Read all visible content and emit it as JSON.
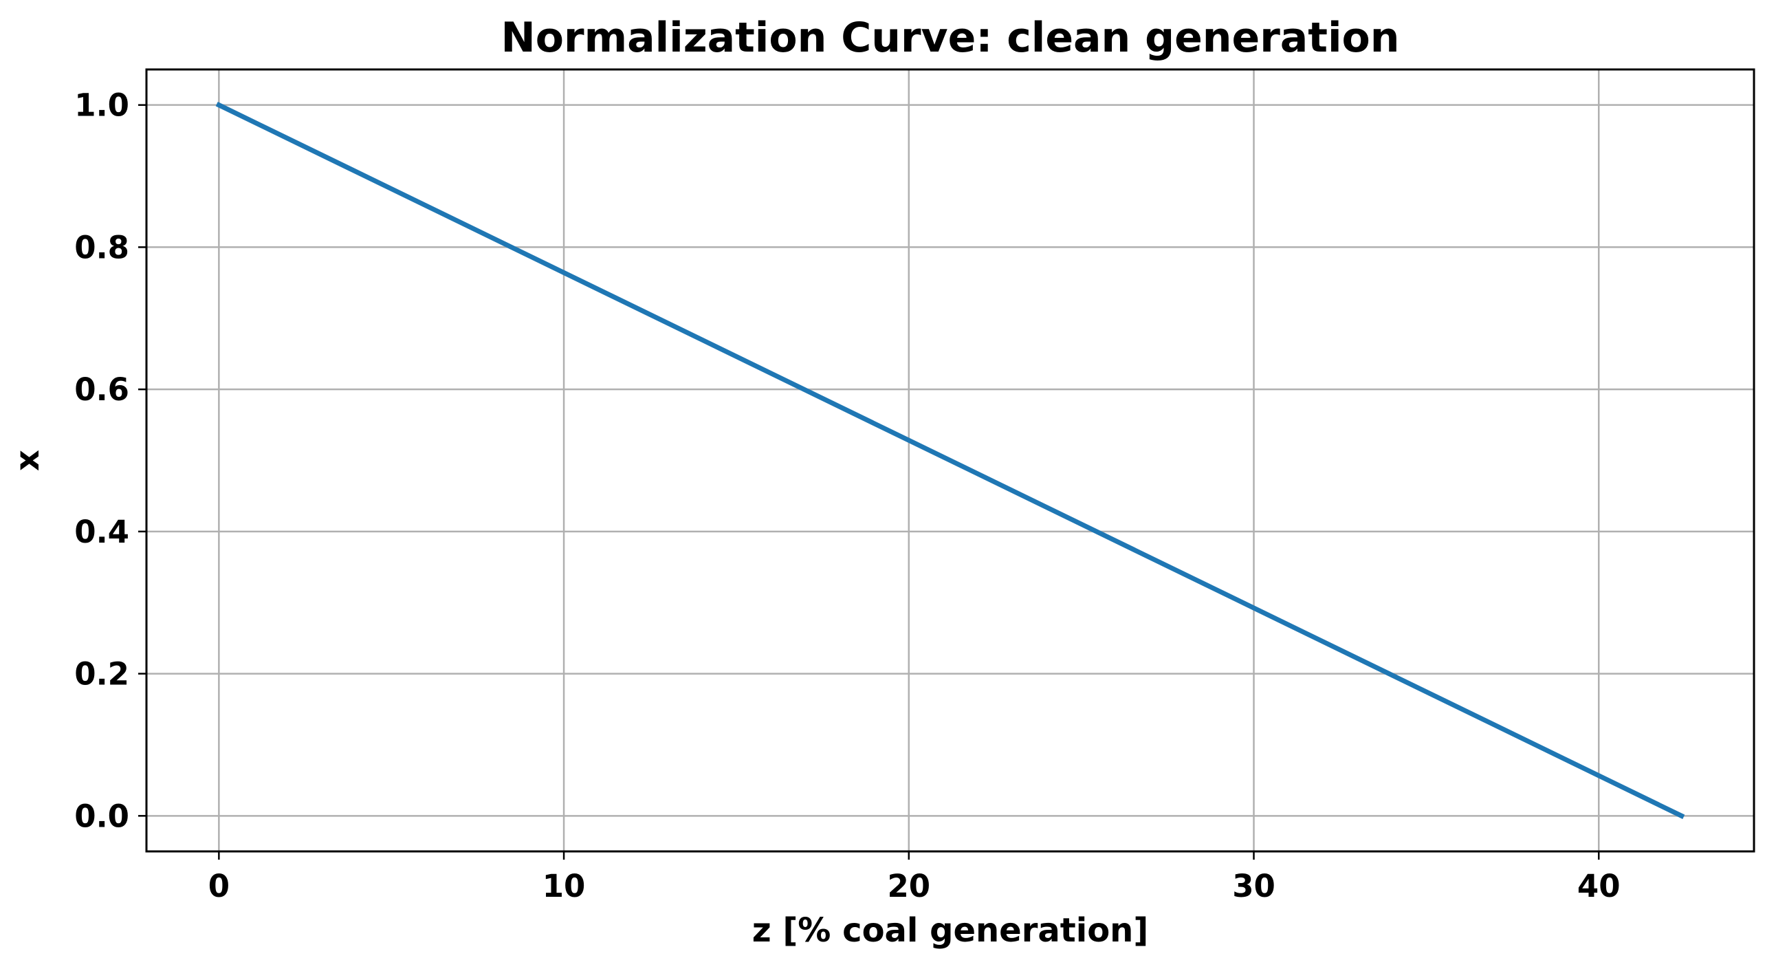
{
  "chart_data": {
    "type": "line",
    "title": "Normalization Curve: clean generation",
    "xlabel": "z [% coal generation]",
    "ylabel": "x",
    "xlim": [
      -2.1,
      44.5
    ],
    "ylim": [
      -0.05,
      1.05
    ],
    "xticks": [
      0,
      10,
      20,
      30,
      40
    ],
    "xtick_labels": [
      "0",
      "10",
      "20",
      "30",
      "40"
    ],
    "yticks": [
      0.0,
      0.2,
      0.4,
      0.6,
      0.8,
      1.0
    ],
    "ytick_labels": [
      "0.0",
      "0.2",
      "0.4",
      "0.6",
      "0.8",
      "1.0"
    ],
    "grid": true,
    "series": [
      {
        "color": "#1f77b4",
        "x": [
          0,
          42.4
        ],
        "y": [
          1.0,
          0.0
        ]
      }
    ]
  }
}
